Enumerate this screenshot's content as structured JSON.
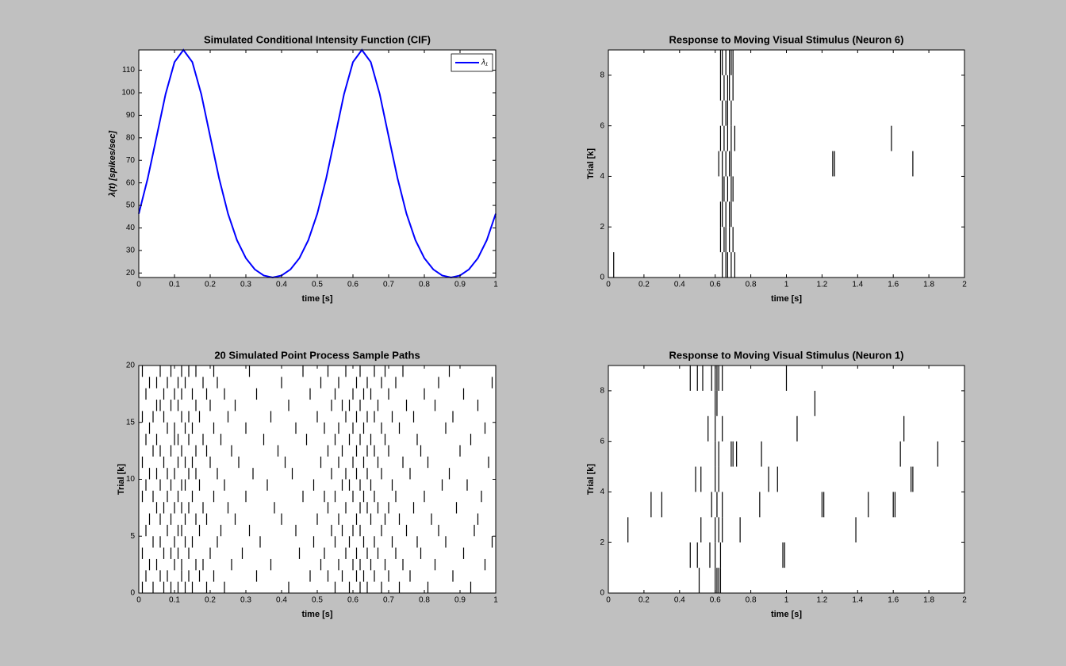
{
  "chart_data": [
    {
      "type": "line",
      "title": "Simulated Conditional Intensity Function (CIF)",
      "x_label": "time [s]",
      "y_label": "λ(t) [spikes/sec]",
      "x": [
        0,
        0.025,
        0.05,
        0.075,
        0.1,
        0.125,
        0.15,
        0.175,
        0.2,
        0.225,
        0.25,
        0.275,
        0.3,
        0.325,
        0.35,
        0.375,
        0.4,
        0.425,
        0.45,
        0.475,
        0.5,
        0.525,
        0.55,
        0.575,
        0.6,
        0.625,
        0.65,
        0.675,
        0.7,
        0.725,
        0.75,
        0.775,
        0.8,
        0.825,
        0.85,
        0.875,
        0.9,
        0.925,
        0.95,
        0.975,
        1
      ],
      "series": [
        {
          "name": "λ₁",
          "color": "#0000ff",
          "values": [
            46.3,
            62.0,
            80.6,
            99.4,
            113.6,
            119,
            113.6,
            99.4,
            80.6,
            62.0,
            46.3,
            34.6,
            26.6,
            21.6,
            18.9,
            18.0,
            18.9,
            21.6,
            26.6,
            34.6,
            46.3,
            62.0,
            80.6,
            99.4,
            113.6,
            119,
            113.6,
            99.4,
            80.6,
            62.0,
            46.3,
            34.6,
            26.6,
            21.6,
            18.9,
            18.0,
            18.9,
            21.6,
            26.6,
            34.6,
            46.3
          ]
        }
      ],
      "xlim": [
        0,
        1
      ],
      "xticks": [
        0,
        0.1,
        0.2,
        0.3,
        0.4,
        0.5,
        0.6,
        0.7,
        0.8,
        0.9,
        1
      ],
      "ylim": [
        18,
        119
      ],
      "yticks": [
        20,
        30,
        40,
        50,
        60,
        70,
        80,
        90,
        100,
        110
      ],
      "legend": "northeast"
    },
    {
      "type": "raster",
      "title": "Response to Moving Visual Stimulus (Neuron 6)",
      "x_label": "time [s]",
      "y_label": "Trial [k]",
      "color": "#000000",
      "spike_times": [
        [
          0.03,
          0.64,
          0.66,
          0.67,
          0.69,
          0.71
        ],
        [
          0.63,
          0.65,
          0.66,
          0.68,
          0.7
        ],
        [
          0.63,
          0.64,
          0.66,
          0.68,
          0.69
        ],
        [
          0.64,
          0.65,
          0.67,
          0.69,
          0.7
        ],
        [
          0.62,
          0.64,
          0.66,
          0.68,
          0.69,
          1.26,
          1.27,
          1.71
        ],
        [
          0.63,
          0.65,
          0.67,
          0.69,
          0.71,
          1.59
        ],
        [
          0.64,
          0.66,
          0.67,
          0.69
        ],
        [
          0.63,
          0.65,
          0.67,
          0.68,
          0.7
        ],
        [
          0.63,
          0.64,
          0.66,
          0.68,
          0.69,
          0.7
        ]
      ],
      "xlim": [
        0,
        2
      ],
      "xticks": [
        0,
        0.2,
        0.4,
        0.6,
        0.8,
        1,
        1.2,
        1.4,
        1.6,
        1.8,
        2
      ],
      "ylim": [
        0,
        9
      ],
      "yticks": [
        0,
        2,
        4,
        6,
        8
      ]
    },
    {
      "type": "raster",
      "title": "20 Simulated Point Process Sample Paths",
      "x_label": "time [s]",
      "y_label": "Trial [k]",
      "color": "#000000",
      "spike_times": [
        [
          0.01,
          0.04,
          0.07,
          0.09,
          0.11,
          0.13,
          0.15,
          0.19,
          0.24,
          0.42,
          0.55,
          0.59,
          0.62,
          0.64,
          0.68,
          0.73,
          0.81,
          0.93
        ],
        [
          0.02,
          0.06,
          0.08,
          0.12,
          0.14,
          0.17,
          0.21,
          0.33,
          0.48,
          0.53,
          0.57,
          0.61,
          0.63,
          0.66,
          0.7,
          0.76,
          0.88
        ],
        [
          0.03,
          0.05,
          0.1,
          0.12,
          0.16,
          0.18,
          0.26,
          0.37,
          0.51,
          0.56,
          0.6,
          0.62,
          0.65,
          0.69,
          0.74,
          0.83,
          0.97
        ],
        [
          0.01,
          0.07,
          0.09,
          0.11,
          0.14,
          0.2,
          0.29,
          0.45,
          0.52,
          0.58,
          0.61,
          0.64,
          0.67,
          0.72,
          0.79,
          0.91
        ],
        [
          0.04,
          0.06,
          0.1,
          0.13,
          0.15,
          0.22,
          0.34,
          0.49,
          0.55,
          0.59,
          0.63,
          0.66,
          0.71,
          0.78,
          0.86,
          0.99
        ],
        [
          0.02,
          0.08,
          0.11,
          0.12,
          0.17,
          0.23,
          0.31,
          0.44,
          0.54,
          0.57,
          0.6,
          0.62,
          0.68,
          0.75,
          0.84,
          0.94
        ],
        [
          0.03,
          0.06,
          0.09,
          0.13,
          0.16,
          0.19,
          0.27,
          0.4,
          0.5,
          0.56,
          0.61,
          0.65,
          0.69,
          0.73,
          0.82,
          0.95
        ],
        [
          0.05,
          0.07,
          0.1,
          0.12,
          0.14,
          0.18,
          0.25,
          0.38,
          0.53,
          0.58,
          0.62,
          0.64,
          0.67,
          0.7,
          0.77,
          0.89
        ],
        [
          0.01,
          0.04,
          0.08,
          0.11,
          0.15,
          0.21,
          0.3,
          0.46,
          0.52,
          0.55,
          0.6,
          0.63,
          0.66,
          0.72,
          0.8,
          0.96
        ],
        [
          0.02,
          0.06,
          0.09,
          0.12,
          0.13,
          0.17,
          0.24,
          0.36,
          0.49,
          0.57,
          0.59,
          0.62,
          0.65,
          0.71,
          0.85,
          0.92
        ],
        [
          0.03,
          0.05,
          0.08,
          0.1,
          0.14,
          0.16,
          0.22,
          0.32,
          0.43,
          0.54,
          0.58,
          0.61,
          0.64,
          0.68,
          0.76,
          0.87
        ],
        [
          0.01,
          0.07,
          0.11,
          0.13,
          0.15,
          0.2,
          0.28,
          0.41,
          0.51,
          0.56,
          0.6,
          0.63,
          0.67,
          0.74,
          0.81,
          0.98
        ],
        [
          0.04,
          0.06,
          0.09,
          0.12,
          0.16,
          0.19,
          0.26,
          0.39,
          0.53,
          0.57,
          0.61,
          0.64,
          0.66,
          0.7,
          0.79,
          0.9
        ],
        [
          0.02,
          0.05,
          0.1,
          0.11,
          0.14,
          0.18,
          0.23,
          0.35,
          0.47,
          0.55,
          0.59,
          0.62,
          0.65,
          0.69,
          0.78,
          0.93
        ],
        [
          0.03,
          0.08,
          0.1,
          0.13,
          0.15,
          0.21,
          0.3,
          0.44,
          0.52,
          0.56,
          0.6,
          0.63,
          0.68,
          0.73,
          0.86,
          0.97
        ],
        [
          0.01,
          0.04,
          0.07,
          0.12,
          0.14,
          0.17,
          0.25,
          0.37,
          0.5,
          0.58,
          0.61,
          0.64,
          0.66,
          0.71,
          0.77,
          0.88
        ],
        [
          0.05,
          0.06,
          0.09,
          0.11,
          0.16,
          0.2,
          0.27,
          0.42,
          0.54,
          0.57,
          0.59,
          0.62,
          0.67,
          0.75,
          0.83,
          0.95
        ],
        [
          0.02,
          0.07,
          0.1,
          0.12,
          0.15,
          0.19,
          0.24,
          0.33,
          0.48,
          0.55,
          0.6,
          0.63,
          0.65,
          0.7,
          0.8,
          0.91
        ],
        [
          0.03,
          0.05,
          0.08,
          0.11,
          0.13,
          0.18,
          0.22,
          0.4,
          0.51,
          0.56,
          0.61,
          0.64,
          0.68,
          0.72,
          0.84,
          0.99
        ],
        [
          0.01,
          0.06,
          0.09,
          0.12,
          0.14,
          0.16,
          0.21,
          0.31,
          0.46,
          0.53,
          0.58,
          0.62,
          0.66,
          0.69,
          0.74,
          0.87
        ]
      ],
      "xlim": [
        0,
        1
      ],
      "xticks": [
        0,
        0.1,
        0.2,
        0.3,
        0.4,
        0.5,
        0.6,
        0.7,
        0.8,
        0.9,
        1
      ],
      "ylim": [
        0,
        20
      ],
      "yticks": [
        0,
        5,
        10,
        15,
        20
      ]
    },
    {
      "type": "raster",
      "title": "Response to Moving Visual Stimulus (Neuron 1)",
      "x_label": "time [s]",
      "y_label": "Trial [k]",
      "color": "#000000",
      "spike_times": [
        [
          0.51,
          0.6,
          0.61,
          0.62,
          0.63
        ],
        [
          0.46,
          0.5,
          0.57,
          0.6,
          0.63,
          0.98,
          0.99
        ],
        [
          0.11,
          0.52,
          0.6,
          0.62,
          0.64,
          0.74,
          1.39
        ],
        [
          0.24,
          0.3,
          0.58,
          0.61,
          0.64,
          0.85,
          1.2,
          1.21,
          1.46,
          1.6,
          1.61
        ],
        [
          0.49,
          0.52,
          0.6,
          0.62,
          0.9,
          0.95,
          1.7,
          1.71
        ],
        [
          0.6,
          0.62,
          0.69,
          0.7,
          0.72,
          0.86,
          1.64,
          1.85
        ],
        [
          0.56,
          0.6,
          0.64,
          1.06,
          1.66
        ],
        [
          0.6,
          0.61,
          1.16
        ],
        [
          0.46,
          0.5,
          0.53,
          0.58,
          0.6,
          0.61,
          0.62,
          0.64,
          1.0
        ]
      ],
      "xlim": [
        0,
        2
      ],
      "xticks": [
        0,
        0.2,
        0.4,
        0.6,
        0.8,
        1,
        1.2,
        1.4,
        1.6,
        1.8,
        2
      ],
      "ylim": [
        0,
        9
      ],
      "yticks": [
        0,
        2,
        4,
        6,
        8
      ]
    }
  ]
}
